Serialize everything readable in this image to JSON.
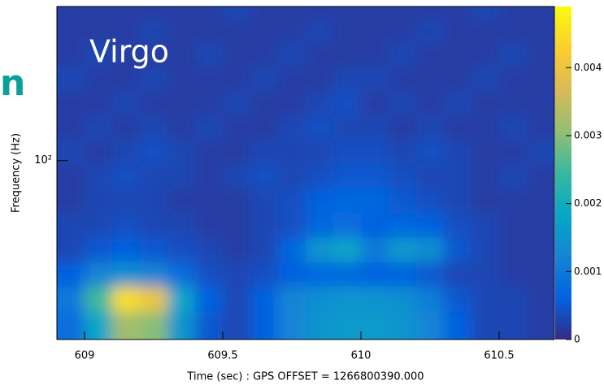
{
  "chart_data": {
    "type": "heatmap",
    "annotations": [
      "n",
      "Virgo"
    ],
    "xlabel": "Time (sec) : GPS OFFSET = 1266800390.000",
    "ylabel": "Frequency (Hz)",
    "xlim": [
      608.9,
      610.7
    ],
    "xticks": [
      609,
      609.5,
      610,
      610.5
    ],
    "ylim": [
      20,
      400
    ],
    "yscale": "log",
    "yticks": [
      {
        "value": 100,
        "label": "10²"
      }
    ],
    "zlim": [
      0,
      0.0049
    ],
    "zticks": [
      0,
      0.001,
      0.002,
      0.003,
      0.004
    ],
    "colormap": [
      "#352a87",
      "#0363e1",
      "#1485d4",
      "#06a7c6",
      "#38b99e",
      "#92bf73",
      "#d9ba56",
      "#fcce2e",
      "#f9fb0e"
    ],
    "x": [
      608.95,
      609.05,
      609.15,
      609.25,
      609.35,
      609.45,
      609.55,
      609.65,
      609.75,
      609.85,
      609.95,
      610.05,
      610.15,
      610.25,
      610.35,
      610.45,
      610.55,
      610.65
    ],
    "y": [
      23,
      29,
      36,
      45,
      56,
      70,
      87,
      108,
      135,
      168,
      209,
      261,
      325,
      380
    ],
    "z": [
      [
        0.0008,
        0.0018,
        0.0032,
        0.003,
        0.0015,
        0.0005,
        0.0003,
        0.0006,
        0.0012,
        0.0015,
        0.0016,
        0.0016,
        0.0015,
        0.0012,
        0.0006,
        0.0003,
        0.0003,
        0.0002
      ],
      [
        0.001,
        0.0025,
        0.0045,
        0.004,
        0.0018,
        0.0006,
        0.0003,
        0.0006,
        0.0012,
        0.0014,
        0.0015,
        0.0015,
        0.0014,
        0.0011,
        0.0005,
        0.0003,
        0.0003,
        0.0002
      ],
      [
        0.0006,
        0.0012,
        0.0014,
        0.0012,
        0.0008,
        0.0004,
        0.0003,
        0.0004,
        0.0006,
        0.0007,
        0.0007,
        0.0006,
        0.0006,
        0.0005,
        0.0003,
        0.0003,
        0.0002,
        0.0002
      ],
      [
        0.0003,
        0.0005,
        0.0006,
        0.0005,
        0.0004,
        0.0003,
        0.0002,
        0.0003,
        0.0007,
        0.0015,
        0.0018,
        0.001,
        0.0016,
        0.0014,
        0.0005,
        0.0003,
        0.0002,
        0.0002
      ],
      [
        0.0003,
        0.0003,
        0.0004,
        0.0003,
        0.0003,
        0.0002,
        0.0002,
        0.0003,
        0.0004,
        0.0007,
        0.0008,
        0.0006,
        0.0007,
        0.0006,
        0.0004,
        0.0003,
        0.0002,
        0.0002
      ],
      [
        0.0002,
        0.0003,
        0.0003,
        0.0003,
        0.0002,
        0.0002,
        0.0002,
        0.0003,
        0.0004,
        0.0006,
        0.0007,
        0.0007,
        0.0005,
        0.0004,
        0.0003,
        0.0002,
        0.0002,
        0.0002
      ],
      [
        0.0002,
        0.0003,
        0.0004,
        0.0003,
        0.0003,
        0.0002,
        0.0003,
        0.0004,
        0.0003,
        0.0004,
        0.0005,
        0.0005,
        0.0004,
        0.0003,
        0.0003,
        0.0002,
        0.0003,
        0.0002
      ],
      [
        0.0003,
        0.0002,
        0.0003,
        0.0004,
        0.0003,
        0.0002,
        0.0002,
        0.0003,
        0.0003,
        0.0003,
        0.0004,
        0.0004,
        0.0003,
        0.0004,
        0.0003,
        0.0002,
        0.0002,
        0.0003
      ],
      [
        0.0002,
        0.0003,
        0.0002,
        0.0003,
        0.0002,
        0.0003,
        0.0002,
        0.0002,
        0.0003,
        0.0004,
        0.0003,
        0.0003,
        0.0002,
        0.0003,
        0.0002,
        0.0002,
        0.0003,
        0.0002
      ],
      [
        0.0002,
        0.0002,
        0.0003,
        0.0002,
        0.0002,
        0.0002,
        0.0003,
        0.0002,
        0.0002,
        0.0003,
        0.0004,
        0.0002,
        0.0003,
        0.0002,
        0.0003,
        0.0002,
        0.0002,
        0.0002
      ],
      [
        0.0003,
        0.0002,
        0.0002,
        0.0003,
        0.0002,
        0.0002,
        0.0002,
        0.0003,
        0.0002,
        0.0002,
        0.0003,
        0.0003,
        0.0002,
        0.0002,
        0.0002,
        0.0003,
        0.0002,
        0.0002
      ],
      [
        0.0002,
        0.0003,
        0.0002,
        0.0002,
        0.0002,
        0.0003,
        0.0002,
        0.0002,
        0.0003,
        0.0002,
        0.0002,
        0.0002,
        0.0003,
        0.0002,
        0.0002,
        0.0002,
        0.0003,
        0.0002
      ],
      [
        0.0002,
        0.0002,
        0.0002,
        0.0003,
        0.0002,
        0.0002,
        0.0002,
        0.0002,
        0.0002,
        0.0003,
        0.0002,
        0.0002,
        0.0002,
        0.0003,
        0.0002,
        0.0002,
        0.0002,
        0.0002
      ],
      [
        0.0002,
        0.0002,
        0.0002,
        0.0002,
        0.0002,
        0.0002,
        0.0003,
        0.0002,
        0.0002,
        0.0002,
        0.0002,
        0.0002,
        0.0002,
        0.0002,
        0.0002,
        0.0003,
        0.0002,
        0.0002
      ]
    ]
  }
}
